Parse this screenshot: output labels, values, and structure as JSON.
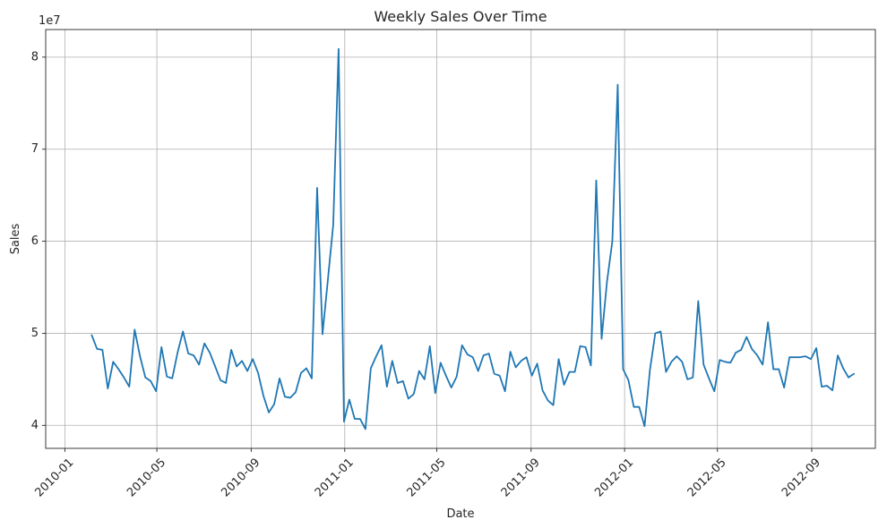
{
  "chart_data": {
    "type": "line",
    "title": "Weekly Sales Over Time",
    "xlabel": "Date",
    "ylabel": "Sales",
    "y_offset_text": "1e7",
    "y_scale_multiplier": 10000000,
    "xlim": [
      "2009-12-07",
      "2012-11-23"
    ],
    "ylim": [
      3.75,
      8.3
    ],
    "grid": true,
    "colors": {
      "line": "#1f77b4"
    },
    "x_ticks": [
      {
        "date": "2010-01-01",
        "label": "2010-01"
      },
      {
        "date": "2010-05-01",
        "label": "2010-05"
      },
      {
        "date": "2010-09-01",
        "label": "2010-09"
      },
      {
        "date": "2011-01-01",
        "label": "2011-01"
      },
      {
        "date": "2011-05-01",
        "label": "2011-05"
      },
      {
        "date": "2011-09-01",
        "label": "2011-09"
      },
      {
        "date": "2012-01-01",
        "label": "2012-01"
      },
      {
        "date": "2012-05-01",
        "label": "2012-05"
      },
      {
        "date": "2012-09-01",
        "label": "2012-09"
      }
    ],
    "y_ticks": [
      {
        "value": 4,
        "label": "4"
      },
      {
        "value": 5,
        "label": "5"
      },
      {
        "value": 6,
        "label": "6"
      },
      {
        "value": 7,
        "label": "7"
      },
      {
        "value": 8,
        "label": "8"
      }
    ],
    "series": [
      {
        "x": [
          "2010-02-05",
          "2010-02-12",
          "2010-02-19",
          "2010-02-26",
          "2010-03-05",
          "2010-03-12",
          "2010-03-19",
          "2010-03-26",
          "2010-04-02",
          "2010-04-09",
          "2010-04-16",
          "2010-04-23",
          "2010-04-30",
          "2010-05-07",
          "2010-05-14",
          "2010-05-21",
          "2010-05-28",
          "2010-06-04",
          "2010-06-11",
          "2010-06-18",
          "2010-06-25",
          "2010-07-02",
          "2010-07-09",
          "2010-07-16",
          "2010-07-23",
          "2010-07-30",
          "2010-08-06",
          "2010-08-13",
          "2010-08-20",
          "2010-08-27",
          "2010-09-03",
          "2010-09-10",
          "2010-09-17",
          "2010-09-24",
          "2010-10-01",
          "2010-10-08",
          "2010-10-15",
          "2010-10-22",
          "2010-10-29",
          "2010-11-05",
          "2010-11-12",
          "2010-11-19",
          "2010-11-26",
          "2010-12-03",
          "2010-12-10",
          "2010-12-17",
          "2010-12-24",
          "2010-12-31",
          "2011-01-07",
          "2011-01-14",
          "2011-01-21",
          "2011-01-28",
          "2011-02-04",
          "2011-02-11",
          "2011-02-18",
          "2011-02-25",
          "2011-03-04",
          "2011-03-11",
          "2011-03-18",
          "2011-03-25",
          "2011-04-01",
          "2011-04-08",
          "2011-04-15",
          "2011-04-22",
          "2011-04-29",
          "2011-05-06",
          "2011-05-13",
          "2011-05-20",
          "2011-05-27",
          "2011-06-03",
          "2011-06-10",
          "2011-06-17",
          "2011-06-24",
          "2011-07-01",
          "2011-07-08",
          "2011-07-15",
          "2011-07-22",
          "2011-07-29",
          "2011-08-05",
          "2011-08-12",
          "2011-08-19",
          "2011-08-26",
          "2011-09-02",
          "2011-09-09",
          "2011-09-16",
          "2011-09-23",
          "2011-09-30",
          "2011-10-07",
          "2011-10-14",
          "2011-10-21",
          "2011-10-28",
          "2011-11-04",
          "2011-11-11",
          "2011-11-18",
          "2011-11-25",
          "2011-12-02",
          "2011-12-09",
          "2011-12-16",
          "2011-12-23",
          "2011-12-30",
          "2012-01-06",
          "2012-01-13",
          "2012-01-20",
          "2012-01-27",
          "2012-02-03",
          "2012-02-10",
          "2012-02-17",
          "2012-02-24",
          "2012-03-02",
          "2012-03-09",
          "2012-03-16",
          "2012-03-23",
          "2012-03-30",
          "2012-04-06",
          "2012-04-13",
          "2012-04-20",
          "2012-04-27",
          "2012-05-04",
          "2012-05-11",
          "2012-05-18",
          "2012-05-25",
          "2012-06-01",
          "2012-06-08",
          "2012-06-15",
          "2012-06-22",
          "2012-06-29",
          "2012-07-06",
          "2012-07-13",
          "2012-07-20",
          "2012-07-27",
          "2012-08-03",
          "2012-08-10",
          "2012-08-17",
          "2012-08-24",
          "2012-08-31",
          "2012-09-07",
          "2012-09-14",
          "2012-09-21",
          "2012-09-28",
          "2012-10-05",
          "2012-10-12",
          "2012-10-19",
          "2012-10-26"
        ],
        "y": [
          4.98,
          4.83,
          4.82,
          4.4,
          4.69,
          4.61,
          4.52,
          4.42,
          5.04,
          4.75,
          4.52,
          4.48,
          4.37,
          4.85,
          4.53,
          4.51,
          4.79,
          5.02,
          4.78,
          4.76,
          4.66,
          4.89,
          4.79,
          4.64,
          4.49,
          4.46,
          4.82,
          4.64,
          4.7,
          4.59,
          4.72,
          4.57,
          4.32,
          4.14,
          4.23,
          4.51,
          4.31,
          4.3,
          4.36,
          4.57,
          4.62,
          4.51,
          6.58,
          4.99,
          5.58,
          6.18,
          8.09,
          4.04,
          4.28,
          4.07,
          4.07,
          3.96,
          4.62,
          4.75,
          4.87,
          4.42,
          4.7,
          4.46,
          4.48,
          4.29,
          4.34,
          4.59,
          4.5,
          4.86,
          4.35,
          4.68,
          4.54,
          4.41,
          4.53,
          4.87,
          4.77,
          4.74,
          4.59,
          4.76,
          4.78,
          4.56,
          4.54,
          4.37,
          4.8,
          4.63,
          4.7,
          4.74,
          4.54,
          4.67,
          4.38,
          4.27,
          4.22,
          4.72,
          4.44,
          4.58,
          4.58,
          4.86,
          4.85,
          4.65,
          6.66,
          4.94,
          5.56,
          6.0,
          7.7,
          4.61,
          4.49,
          4.2,
          4.2,
          3.99,
          4.6,
          5.0,
          5.02,
          4.58,
          4.69,
          4.75,
          4.69,
          4.5,
          4.52,
          5.35,
          4.66,
          4.51,
          4.37,
          4.71,
          4.69,
          4.68,
          4.79,
          4.82,
          4.96,
          4.83,
          4.76,
          4.66,
          5.12,
          4.61,
          4.61,
          4.41,
          4.74,
          4.74,
          4.74,
          4.75,
          4.72,
          4.84,
          4.42,
          4.43,
          4.38,
          4.76,
          4.62,
          4.52,
          4.56
        ]
      }
    ]
  }
}
